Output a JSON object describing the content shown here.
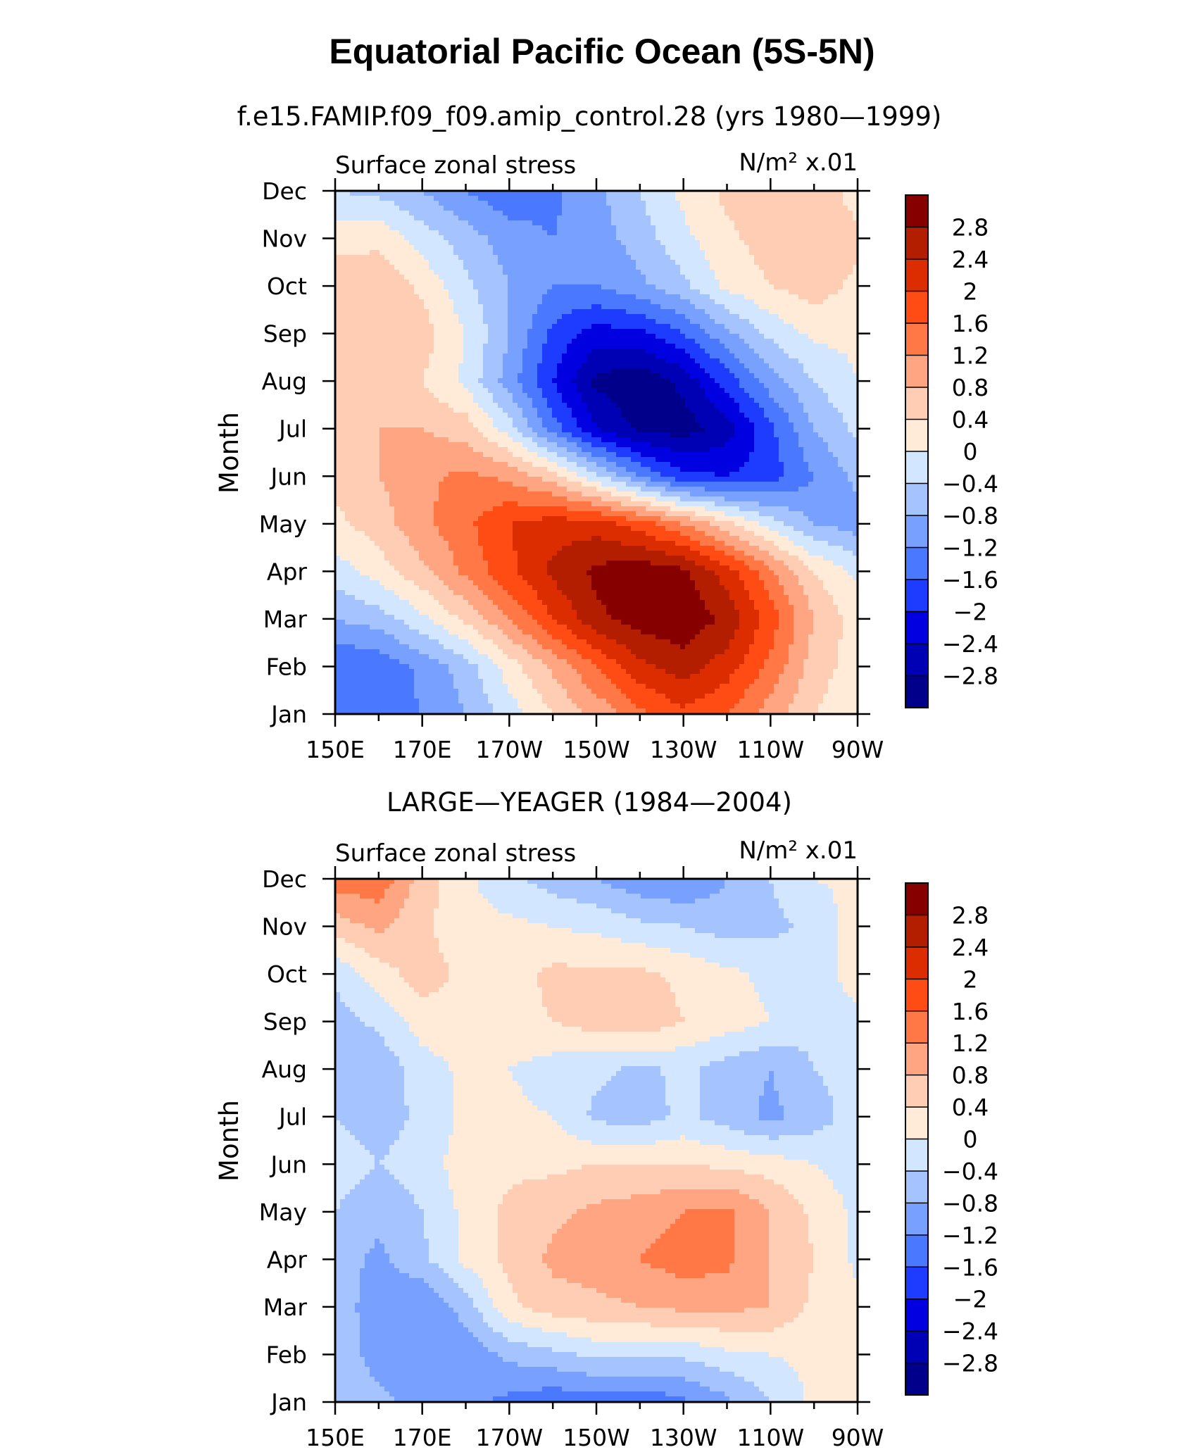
{
  "figure": {
    "title": "Equatorial Pacific Ocean (5S-5N)",
    "colors": [
      "#00008b",
      "#0000b4",
      "#0000e0",
      "#1e3cff",
      "#4a78ff",
      "#78a0ff",
      "#a5c3ff",
      "#d2e6ff",
      "#ffebd7",
      "#ffcdb4",
      "#ffa582",
      "#ff7846",
      "#ff4b14",
      "#dc2d00",
      "#b41e00",
      "#870000"
    ]
  },
  "chart_data": [
    {
      "type": "heatmap",
      "plot_title": "f.e15.FAMIP.f09_f09.amip_control.28 (yrs 1980—1999)",
      "left_label": "Surface zonal stress",
      "right_label": "N/m² x.01",
      "xlabel": "",
      "ylabel": "Month",
      "x_ticks": [
        "150E",
        "170E",
        "170W",
        "150W",
        "130W",
        "110W",
        "90W"
      ],
      "y_ticks": [
        "Jan",
        "Feb",
        "Mar",
        "Apr",
        "May",
        "Jun",
        "Jul",
        "Aug",
        "Sep",
        "Oct",
        "Nov",
        "Dec"
      ],
      "x_range_deg_east": [
        150,
        270
      ],
      "colorbar_levels": [
        "2.8",
        "2.4",
        "2",
        "1.6",
        "1.2",
        "0.8",
        "0.4",
        "0",
        "−0.4",
        "−0.8",
        "−1.2",
        "−1.6",
        "−2",
        "−2.4",
        "−2.8"
      ],
      "x": [
        150,
        160,
        170,
        180,
        190,
        200,
        210,
        220,
        230,
        240,
        250,
        260,
        270
      ],
      "y": [
        "Jan",
        "Feb",
        "Mar",
        "Apr",
        "May",
        "Jun",
        "Jul",
        "Aug",
        "Sep",
        "Oct",
        "Nov",
        "Dec"
      ],
      "z": [
        [
          -1.4,
          -1.4,
          -1.2,
          -0.8,
          -0.2,
          0.4,
          0.9,
          1.5,
          1.9,
          1.6,
          1.0,
          0.4,
          0.1
        ],
        [
          -1.6,
          -1.5,
          -1.1,
          -0.6,
          0.2,
          0.9,
          1.6,
          2.3,
          2.6,
          2.2,
          1.5,
          0.6,
          0.2
        ],
        [
          -0.8,
          -0.6,
          -0.1,
          0.5,
          1.2,
          2.0,
          2.7,
          3.0,
          3.1,
          2.7,
          1.8,
          0.8,
          0.2
        ],
        [
          -0.2,
          0.2,
          0.7,
          1.3,
          1.9,
          2.5,
          2.9,
          3.1,
          2.9,
          2.2,
          1.3,
          0.4,
          -0.1
        ],
        [
          0.3,
          0.6,
          1.1,
          1.5,
          2.0,
          2.2,
          2.2,
          1.8,
          1.2,
          0.5,
          -0.2,
          -0.8,
          -1.0
        ],
        [
          0.5,
          0.8,
          1.1,
          1.3,
          1.1,
          0.6,
          -0.3,
          -1.2,
          -1.9,
          -2.0,
          -1.8,
          -1.2,
          -0.7
        ],
        [
          0.6,
          0.8,
          0.8,
          0.6,
          -0.2,
          -1.4,
          -2.4,
          -2.9,
          -3.0,
          -2.6,
          -1.7,
          -0.8,
          -0.3
        ],
        [
          0.5,
          0.5,
          0.4,
          -0.1,
          -1.0,
          -2.0,
          -2.9,
          -3.1,
          -2.7,
          -1.8,
          -1.0,
          -0.4,
          0.0
        ],
        [
          0.7,
          0.8,
          0.6,
          0.0,
          -0.8,
          -1.7,
          -2.2,
          -2.1,
          -1.6,
          -0.9,
          -0.3,
          0.1,
          0.1
        ],
        [
          0.7,
          0.7,
          0.3,
          -0.3,
          -0.8,
          -1.2,
          -1.2,
          -0.9,
          -0.5,
          0.1,
          0.4,
          0.6,
          0.3
        ],
        [
          0.2,
          0.3,
          -0.2,
          -0.6,
          -1.0,
          -1.2,
          -1.0,
          -0.6,
          -0.1,
          0.3,
          0.6,
          0.7,
          0.5
        ],
        [
          -0.4,
          -0.5,
          -0.8,
          -1.2,
          -1.5,
          -1.3,
          -0.9,
          -0.4,
          0.1,
          0.5,
          0.8,
          0.7,
          0.2
        ]
      ]
    },
    {
      "type": "heatmap",
      "plot_title": "LARGE—YEAGER (1984—2004)",
      "left_label": "Surface zonal stress",
      "right_label": "N/m² x.01",
      "xlabel": "",
      "ylabel": "Month",
      "x_ticks": [
        "150E",
        "170E",
        "170W",
        "150W",
        "130W",
        "110W",
        "90W"
      ],
      "y_ticks": [
        "Jan",
        "Feb",
        "Mar",
        "Apr",
        "May",
        "Jun",
        "Jul",
        "Aug",
        "Sep",
        "Oct",
        "Nov",
        "Dec"
      ],
      "x_range_deg_east": [
        150,
        270
      ],
      "colorbar_levels": [
        "2.8",
        "2.4",
        "2",
        "1.6",
        "1.2",
        "0.8",
        "0.4",
        "0",
        "−0.4",
        "−0.8",
        "−1.2",
        "−1.6",
        "−2",
        "−2.4",
        "−2.8"
      ],
      "x": [
        150,
        160,
        170,
        180,
        190,
        200,
        210,
        220,
        230,
        240,
        250,
        260,
        270
      ],
      "y": [
        "Jan",
        "Feb",
        "Mar",
        "Apr",
        "May",
        "Jun",
        "Jul",
        "Aug",
        "Sep",
        "Oct",
        "Nov",
        "Dec"
      ],
      "z": [
        [
          -0.4,
          -0.7,
          -0.9,
          -1.1,
          -1.3,
          -1.5,
          -1.4,
          -1.5,
          -1.3,
          -0.9,
          -0.4,
          0.1,
          0.1
        ],
        [
          -0.5,
          -1.0,
          -1.2,
          -1.1,
          -0.7,
          -0.5,
          -0.3,
          -0.3,
          -0.3,
          -0.1,
          0.0,
          0.1,
          0.1
        ],
        [
          -0.6,
          -1.0,
          -1.2,
          -0.6,
          0.3,
          0.6,
          0.7,
          0.8,
          0.9,
          0.9,
          0.8,
          0.3,
          0.1
        ],
        [
          -0.6,
          -0.9,
          -0.5,
          0.1,
          0.5,
          0.9,
          1.0,
          1.2,
          1.4,
          1.3,
          0.8,
          0.4,
          -0.1
        ],
        [
          -0.4,
          -0.7,
          -0.4,
          0.1,
          0.5,
          0.7,
          0.9,
          1.0,
          1.2,
          1.3,
          0.8,
          0.3,
          -0.1
        ],
        [
          -0.2,
          -0.4,
          -0.2,
          0.2,
          0.3,
          0.3,
          0.4,
          0.4,
          0.4,
          0.3,
          0.2,
          0.0,
          -0.2
        ],
        [
          -0.4,
          -0.6,
          -0.3,
          0.1,
          0.1,
          0.0,
          -0.5,
          -0.6,
          -0.3,
          -0.6,
          -0.9,
          -0.6,
          -0.2
        ],
        [
          -0.8,
          -0.7,
          -0.2,
          0.1,
          0.0,
          -0.2,
          -0.3,
          -0.5,
          -0.3,
          -0.6,
          -0.8,
          -0.4,
          -0.2
        ],
        [
          -0.6,
          -0.3,
          0.2,
          0.3,
          0.3,
          0.4,
          0.6,
          0.7,
          0.4,
          0.2,
          0.0,
          -0.3,
          -0.2
        ],
        [
          -0.3,
          0.2,
          0.6,
          0.3,
          0.2,
          0.5,
          0.5,
          0.5,
          0.3,
          0.1,
          -0.1,
          -0.3,
          0.3
        ],
        [
          0.6,
          0.9,
          0.5,
          0.1,
          0.1,
          0.0,
          -0.1,
          -0.3,
          -0.4,
          -0.6,
          -0.5,
          -0.3,
          0.2
        ],
        [
          1.4,
          1.5,
          0.6,
          0.1,
          -0.3,
          -0.6,
          -0.8,
          -1.1,
          -1.2,
          -0.8,
          -0.4,
          0.0,
          0.1
        ]
      ]
    }
  ]
}
